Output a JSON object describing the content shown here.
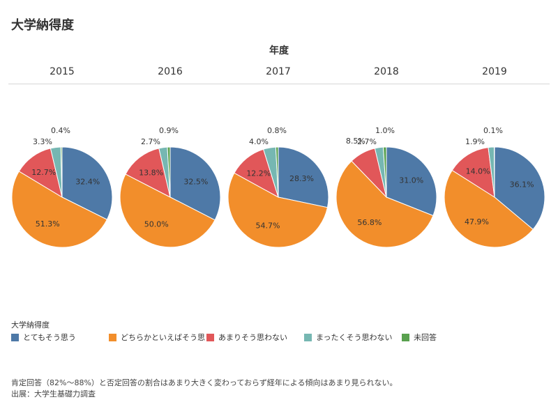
{
  "title": "大学納得度",
  "column_header": "年度",
  "legend_title": "大学納得度",
  "note": "肯定回答（82%〜88%）と否定回答の割合はあまり大きく変わっておらず経年による傾向はあまり見られない。",
  "source": "出展：大学生基礎力調査",
  "chart_data": {
    "type": "pie",
    "title": "大学納得度",
    "column_header": "年度",
    "categories": [
      "とてもそう思う",
      "どちらかといえばそう思う",
      "あまりそう思わない",
      "まったくそう思わない",
      "未回答"
    ],
    "colors": [
      "#4e79a7",
      "#f28e2b",
      "#e15759",
      "#76b7b2",
      "#59a14f"
    ],
    "legend_placement": "bottom",
    "pies": [
      {
        "year": "2015",
        "values": [
          32.4,
          51.3,
          12.7,
          3.3,
          0.4
        ],
        "labels": [
          "32.4%",
          "51.3%",
          "12.7%",
          "3.3%",
          "0.4%"
        ]
      },
      {
        "year": "2016",
        "values": [
          32.5,
          50.0,
          13.8,
          2.7,
          0.9
        ],
        "labels": [
          "32.5%",
          "50.0%",
          "13.8%",
          "2.7%",
          "0.9%"
        ]
      },
      {
        "year": "2017",
        "values": [
          28.3,
          54.7,
          12.2,
          4.0,
          0.8
        ],
        "labels": [
          "28.3%",
          "54.7%",
          "12.2%",
          "4.0%",
          "0.8%"
        ]
      },
      {
        "year": "2018",
        "values": [
          31.0,
          56.8,
          8.5,
          2.7,
          1.0
        ],
        "labels": [
          "31.0%",
          "56.8%",
          "8.5%",
          "2.7%",
          "1.0%"
        ]
      },
      {
        "year": "2019",
        "values": [
          36.1,
          47.9,
          14.0,
          1.9,
          0.1
        ],
        "labels": [
          "36.1%",
          "47.9%",
          "14.0%",
          "1.9%",
          "0.1%"
        ]
      }
    ]
  }
}
